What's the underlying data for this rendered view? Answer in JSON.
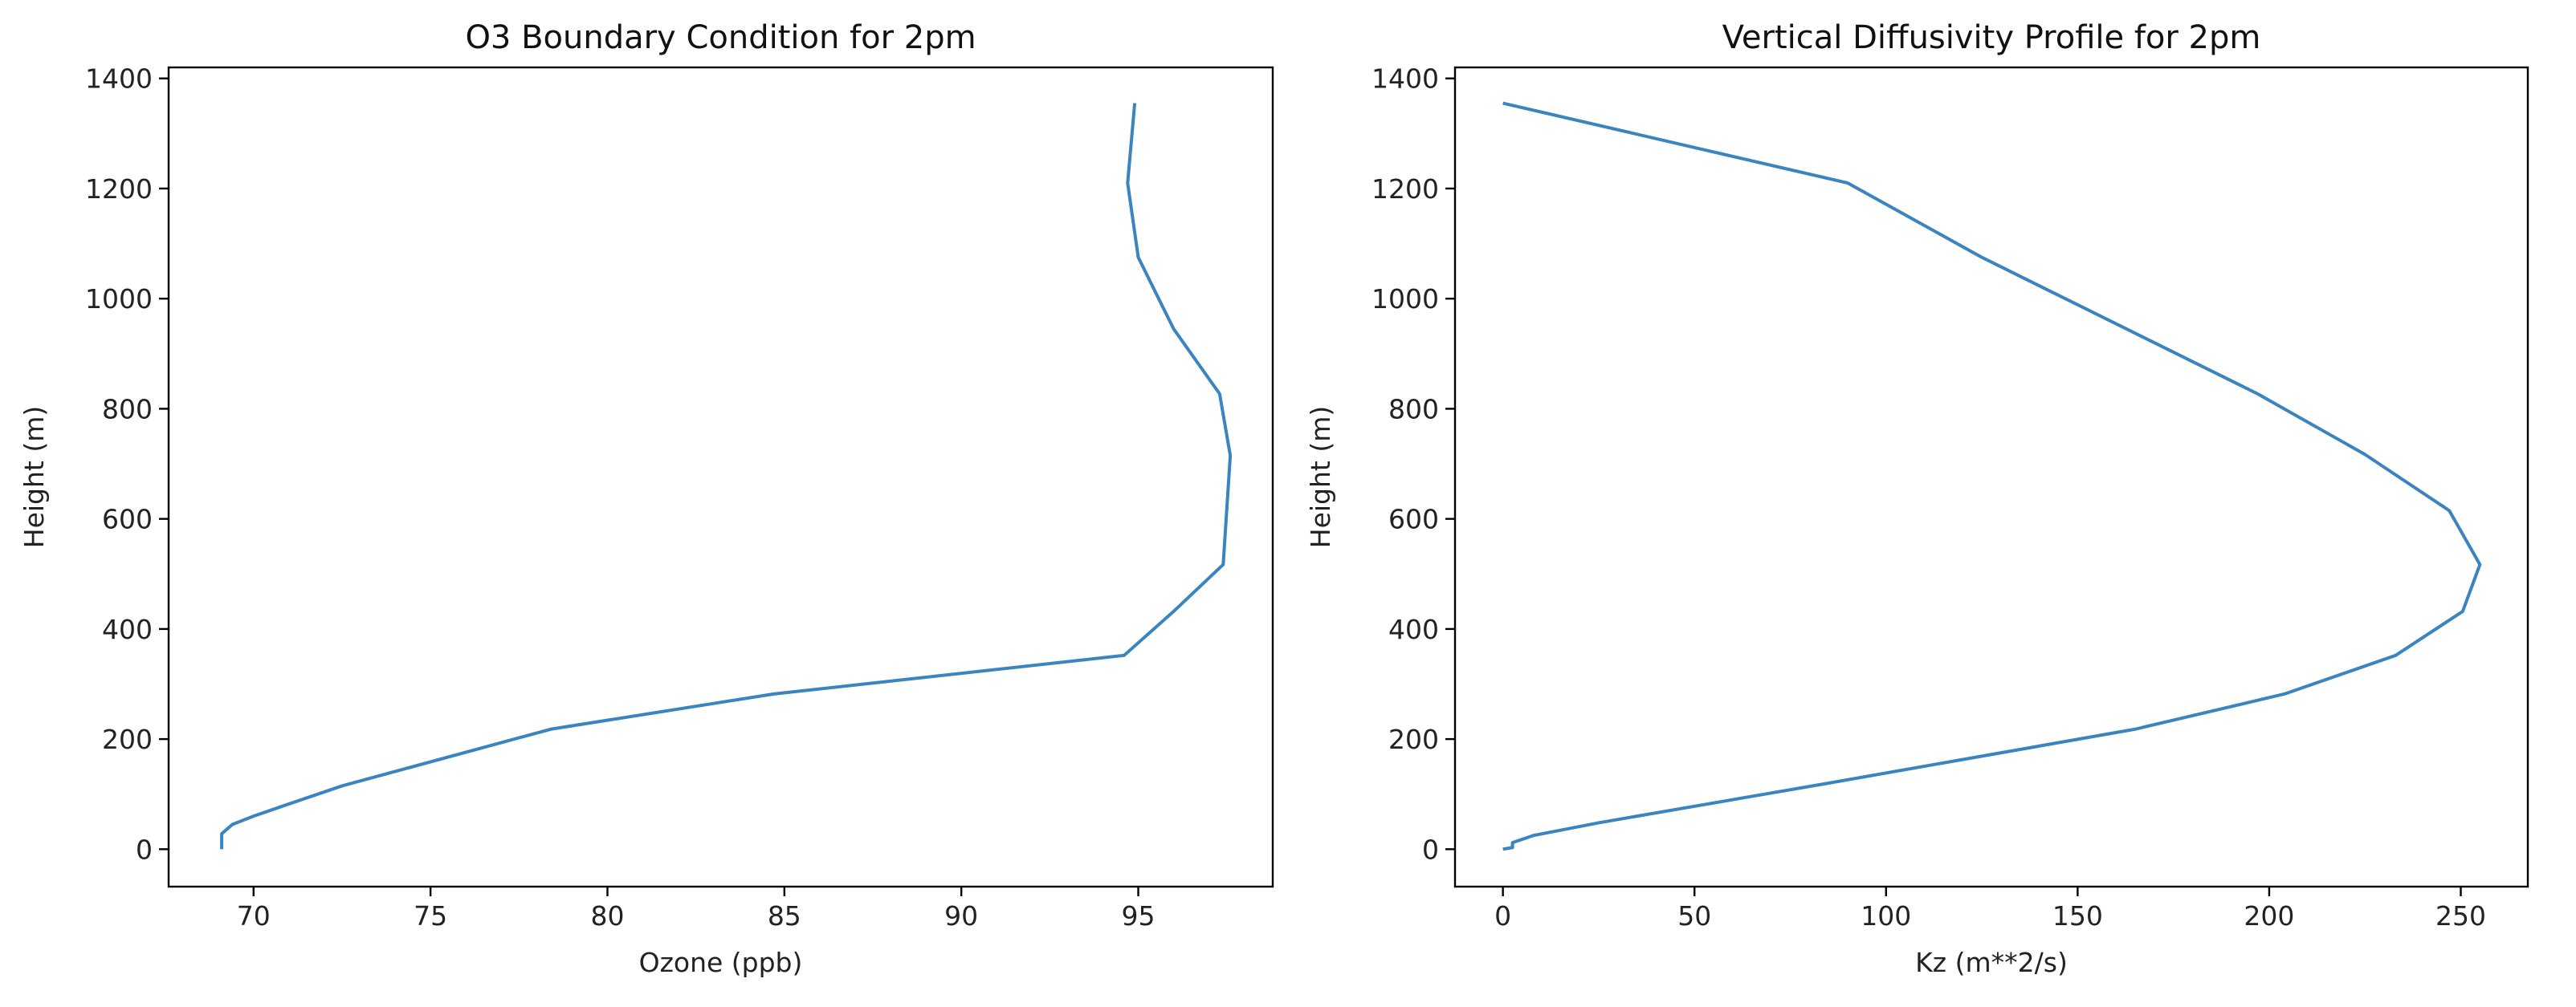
{
  "colors": {
    "series": "#3a84bf",
    "axis": "#000000",
    "background": "#ffffff"
  },
  "chart_data": [
    {
      "type": "line",
      "title": "O3 Boundary Condition for 2pm",
      "xlabel": "Ozone (ppb)",
      "ylabel": "Height (m)",
      "xlim": [
        67.6,
        98.8
      ],
      "ylim": [
        -68,
        1420
      ],
      "xticks": [
        70,
        75,
        80,
        85,
        90,
        95
      ],
      "yticks": [
        0,
        200,
        400,
        600,
        800,
        1000,
        1200,
        1400
      ],
      "grid": false,
      "series": [
        {
          "x": [
            69.1,
            69.1,
            69.1,
            69.4,
            70.0,
            70.9,
            72.5,
            78.4,
            84.7,
            94.6,
            96.0,
            97.4,
            97.6,
            97.3,
            96.0,
            95.0,
            94.7,
            94.9
          ],
          "y": [
            0,
            15,
            28,
            45,
            60,
            80,
            115,
            218,
            282,
            352,
            432,
            517,
            715,
            827,
            945,
            1075,
            1210,
            1355
          ]
        }
      ]
    },
    {
      "type": "line",
      "title": "Vertical Diffusivity Profile for 2pm",
      "xlabel": "Kz (m**2/s)",
      "ylabel": "Height (m)",
      "xlim": [
        -12.5,
        267.5
      ],
      "ylim": [
        -68,
        1420
      ],
      "xticks": [
        0,
        50,
        100,
        150,
        200,
        250
      ],
      "yticks": [
        0,
        200,
        400,
        600,
        800,
        1000,
        1200,
        1400
      ],
      "grid": false,
      "series": [
        {
          "x": [
            0.0,
            2.5,
            2.5,
            8.0,
            25.0,
            85.0,
            165.0,
            204.0,
            233.0,
            250.5,
            255.0,
            247.0,
            225.0,
            197.0,
            125.0,
            90.0,
            0.0
          ],
          "y": [
            0,
            3,
            12,
            25,
            48,
            120,
            218,
            282,
            352,
            432,
            517,
            615,
            717,
            827,
            1075,
            1210,
            1355
          ]
        }
      ]
    }
  ]
}
